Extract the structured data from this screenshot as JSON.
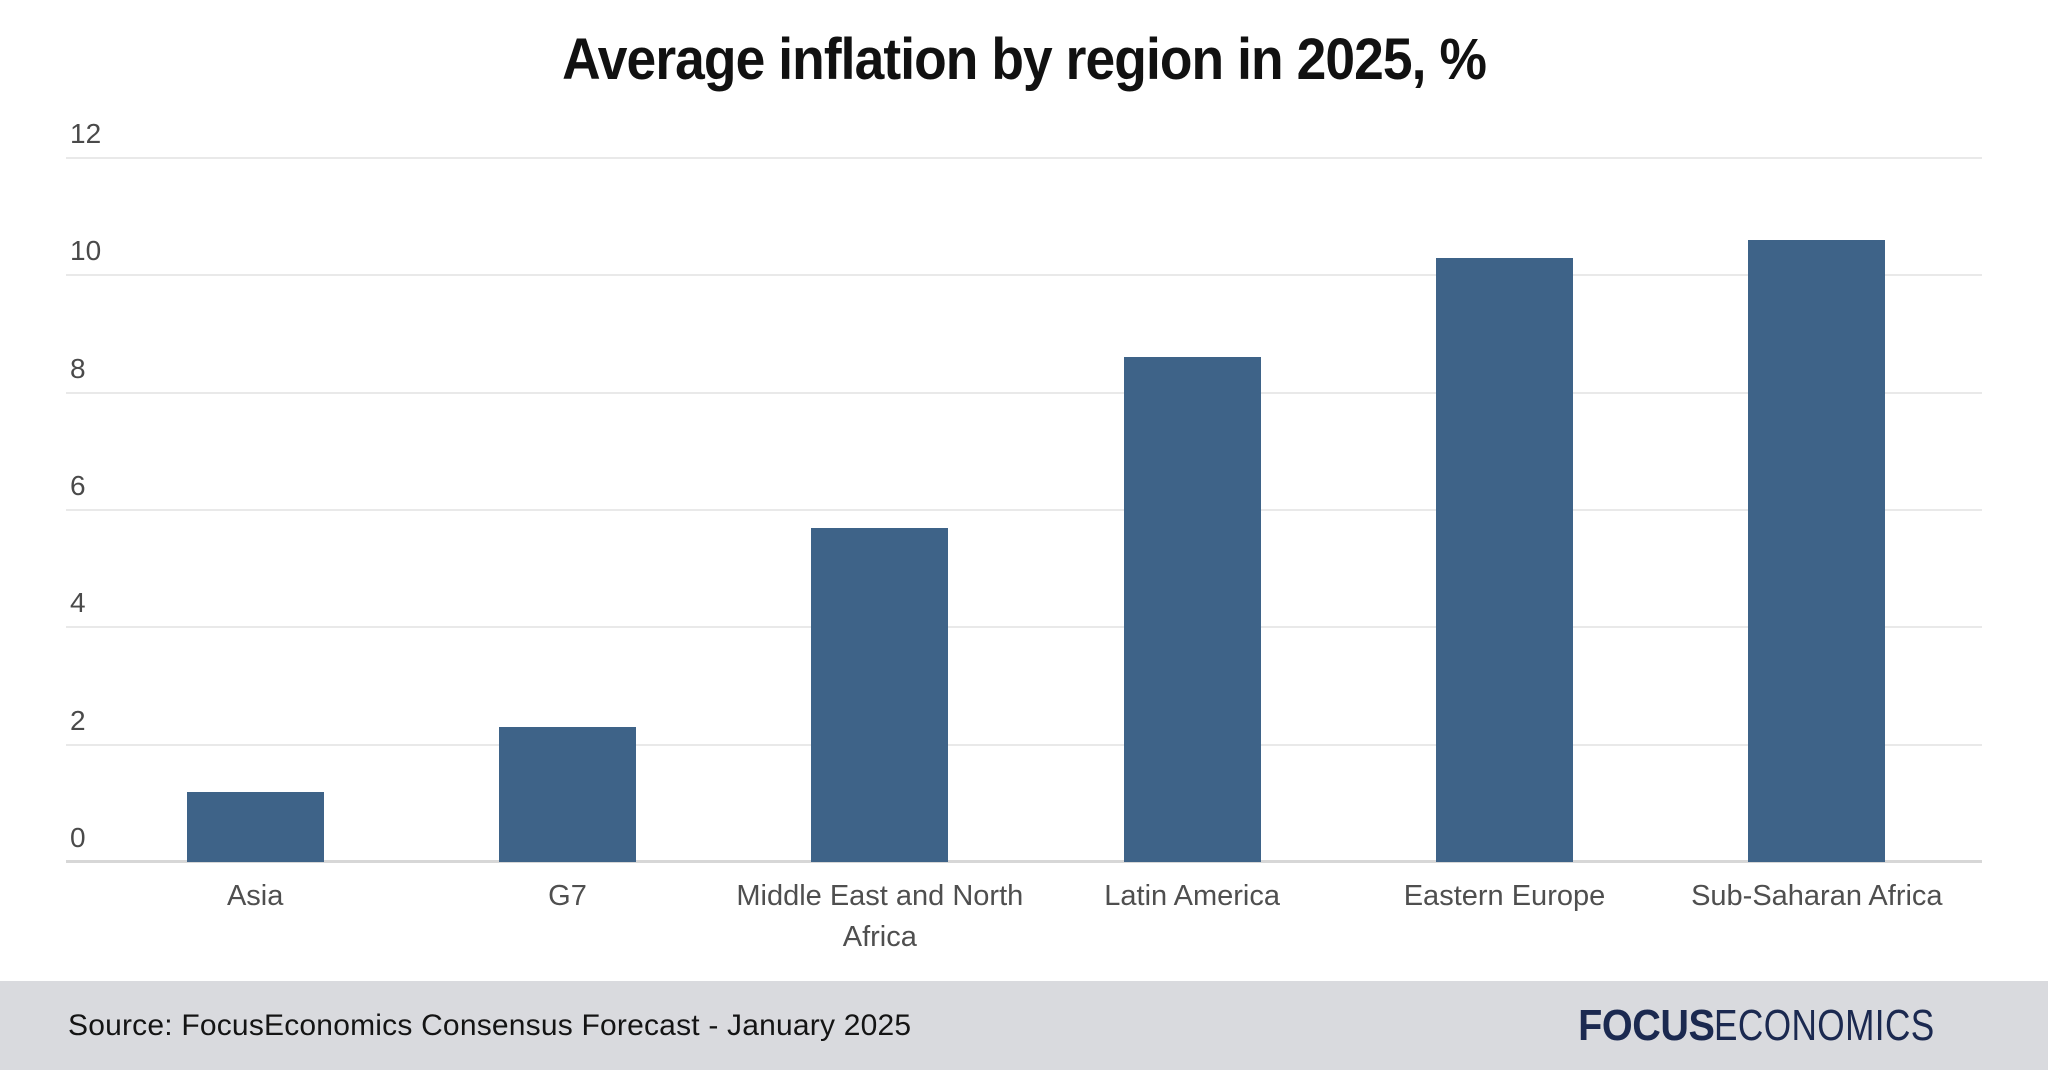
{
  "title": "Average inflation by region in 2025, %",
  "chart_data": {
    "type": "bar",
    "title": "Average inflation by region in 2025, %",
    "categories": [
      "Asia",
      "G7",
      "Middle East and North Africa",
      "Latin America",
      "Eastern Europe",
      "Sub-Saharan Africa"
    ],
    "values": [
      1.2,
      2.3,
      5.7,
      8.6,
      10.3,
      10.6
    ],
    "xlabel": "",
    "ylabel": "",
    "ylim": [
      0,
      12
    ],
    "yticks": [
      0,
      2,
      4,
      6,
      8,
      10,
      12
    ],
    "grid": true,
    "legend": false,
    "bar_color": "#3e6388"
  },
  "footer": {
    "source": "Source: FocusEconomics Consensus Forecast - January 2025",
    "logo_part1": "FOCUS",
    "logo_part2": "ECONOMICS"
  },
  "colors": {
    "bar": "#3e6388",
    "grid": "#e9e9e9",
    "baseline": "#d7d7d7",
    "tick_text": "#4a4a4a",
    "label_text": "#4f4f4f",
    "title_text": "#111111",
    "footer_bg": "#d9dade",
    "logo_navy": "#1b2950"
  }
}
